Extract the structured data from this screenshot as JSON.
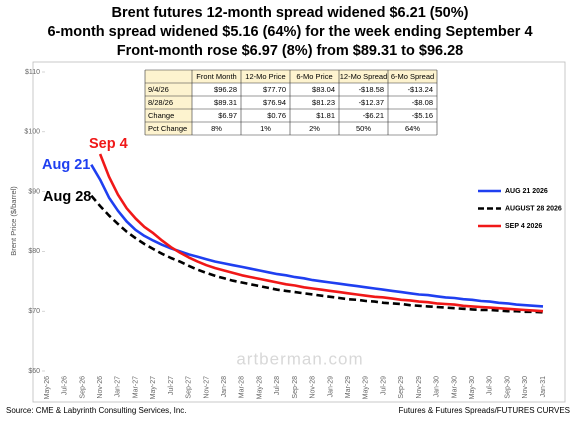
{
  "chart_data": {
    "type": "line",
    "title": [
      "Brent futures 12-month spread widened $6.21 (50%)",
      "6-month spread widened $5.16 (64%) for the week ending September 4",
      "Front-month rose $6.97 (8%) from $89.31 to $96.28"
    ],
    "y_label": "Brent Price ($/barrel)",
    "ylim": [
      60,
      110
    ],
    "yticks": [
      {
        "value": 60,
        "label": "$60"
      },
      {
        "value": 70,
        "label": "$70"
      },
      {
        "value": 80,
        "label": "$80"
      },
      {
        "value": 90,
        "label": "$90"
      },
      {
        "value": 100,
        "label": "$100"
      },
      {
        "value": 110,
        "label": "$110"
      }
    ],
    "grid": false,
    "legend": "right",
    "categories": [
      "May-26",
      null,
      "Jul-26",
      null,
      "Sep-26",
      null,
      "Nov-26",
      null,
      "Jan-27",
      null,
      "Mar-27",
      null,
      "May-27",
      null,
      "Jul-27",
      null,
      "Sep-27",
      null,
      "Nov-27",
      null,
      "Jan-28",
      null,
      "Mar-28",
      null,
      "May-28",
      null,
      "Jul-28",
      null,
      "Sep-28",
      null,
      "Nov-28",
      null,
      "Jan-29",
      null,
      "Mar-29",
      null,
      "May-29",
      null,
      "Jul-29",
      null,
      "Sep-29",
      null,
      "Nov-29",
      null,
      "Jan-30",
      null,
      "Mar-30",
      null,
      "May-30",
      null,
      "Jul-30",
      null,
      "Sep-30",
      null,
      "Nov-30",
      null,
      "Jan-31"
    ],
    "series": [
      {
        "name": "AUG 21 2026",
        "color": "#1f3ff0",
        "dash": false,
        "values": [
          null,
          null,
          null,
          null,
          null,
          94.5,
          92.0,
          89.0,
          86.8,
          85.0,
          83.6,
          82.6,
          81.8,
          81.1,
          80.5,
          80.0,
          79.5,
          79.1,
          78.7,
          78.3,
          78.0,
          77.7,
          77.4,
          77.1,
          76.8,
          76.5,
          76.2,
          76.0,
          75.7,
          75.5,
          75.2,
          75.0,
          74.8,
          74.6,
          74.4,
          74.2,
          74.0,
          73.8,
          73.6,
          73.4,
          73.2,
          73.0,
          72.8,
          72.7,
          72.5,
          72.3,
          72.2,
          72.0,
          71.9,
          71.7,
          71.6,
          71.4,
          71.3,
          71.1,
          71.0,
          70.9,
          70.8
        ]
      },
      {
        "name": "AUGUST 28 2026",
        "color": "#000000",
        "dash": true,
        "values": [
          null,
          null,
          null,
          null,
          null,
          89.31,
          87.6,
          86.0,
          84.6,
          83.3,
          82.2,
          81.23,
          80.4,
          79.6,
          78.9,
          78.3,
          77.6,
          76.94,
          76.4,
          75.9,
          75.5,
          75.1,
          74.8,
          74.5,
          74.2,
          73.9,
          73.6,
          73.4,
          73.2,
          73.0,
          72.8,
          72.6,
          72.4,
          72.2,
          72.0,
          71.9,
          71.7,
          71.6,
          71.4,
          71.3,
          71.2,
          71.0,
          70.9,
          70.8,
          70.7,
          70.6,
          70.5,
          70.4,
          70.3,
          70.2,
          70.2,
          70.1,
          70.0,
          70.0,
          69.9,
          69.9,
          69.8
        ]
      },
      {
        "name": "SEP 4 2026",
        "color": "#f01818",
        "dash": false,
        "values": [
          null,
          null,
          null,
          null,
          null,
          null,
          96.28,
          92.5,
          89.5,
          87.2,
          85.5,
          84.1,
          83.04,
          81.8,
          80.7,
          79.8,
          79.0,
          78.3,
          77.7,
          77.2,
          76.8,
          76.4,
          76.0,
          75.7,
          75.4,
          75.1,
          74.8,
          74.5,
          74.3,
          74.0,
          73.8,
          73.6,
          73.4,
          73.2,
          73.0,
          72.8,
          72.6,
          72.4,
          72.3,
          72.1,
          71.9,
          71.8,
          71.6,
          71.5,
          71.3,
          71.2,
          71.1,
          70.9,
          70.8,
          70.7,
          70.6,
          70.5,
          70.4,
          70.3,
          70.2,
          70.1,
          70.0
        ]
      }
    ],
    "annotations": [
      {
        "text": "Aug 21",
        "color": "#1f3ff0"
      },
      {
        "text": "Sep 4",
        "color": "#f01818"
      },
      {
        "text": "Aug 28",
        "color": "#000000"
      }
    ],
    "watermark": "artberman.com",
    "table": {
      "columns": [
        "Front Month",
        "12-Mo Price",
        "6-Mo Price",
        "12-Mo Spread",
        "6-Mo Spread"
      ],
      "rows": [
        {
          "label": "9/4/26",
          "cells": [
            "$96.28",
            "$77.70",
            "$83.04",
            "-$18.58",
            "-$13.24"
          ]
        },
        {
          "label": "8/28/26",
          "cells": [
            "$89.31",
            "$76.94",
            "$81.23",
            "-$12.37",
            "-$8.08"
          ]
        },
        {
          "label": "Change",
          "cells": [
            "$6.97",
            "$0.76",
            "$1.81",
            "-$6.21",
            "-$5.16"
          ]
        },
        {
          "label": "Pct Change",
          "cells": [
            "8%",
            "1%",
            "2%",
            "50%",
            "64%"
          ]
        }
      ]
    },
    "source": "Source: CME & Labyrinth Consulting Services, Inc.",
    "credit": "Futures & Futures Spreads/FUTURES CURVES"
  }
}
